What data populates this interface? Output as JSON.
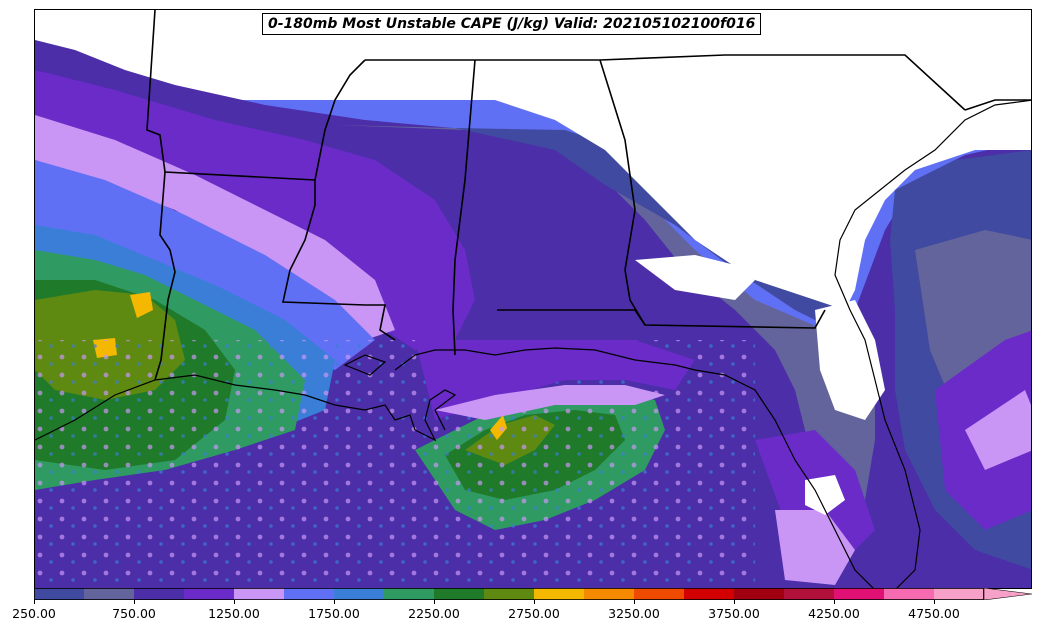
{
  "title": "0-180mb Most Unstable CAPE (J/kg) Valid: 202105102100f016",
  "colorbar": {
    "levels": [
      250,
      500,
      750,
      1000,
      1250,
      1500,
      1750,
      2000,
      2250,
      2500,
      2750,
      3000,
      3250,
      3500,
      3750,
      4000,
      4250,
      4500,
      4750,
      5000
    ],
    "colors": [
      "#3f4aa0",
      "#64649c",
      "#4b2ea8",
      "#6a2bc8",
      "#c996f5",
      "#6070f5",
      "#3a7ed8",
      "#2f9a62",
      "#1f7a2a",
      "#5f8a12",
      "#f5b800",
      "#f58a00",
      "#ee4a00",
      "#d20000",
      "#a00010",
      "#b0103a",
      "#e01075",
      "#f56ab0",
      "#f7a0c8"
    ],
    "ticks": [
      "250.00",
      "750.00",
      "1250.00",
      "1750.00",
      "2250.00",
      "2750.00",
      "3250.00",
      "3750.00",
      "4250.00",
      "4750.00"
    ],
    "extend": "max"
  }
}
